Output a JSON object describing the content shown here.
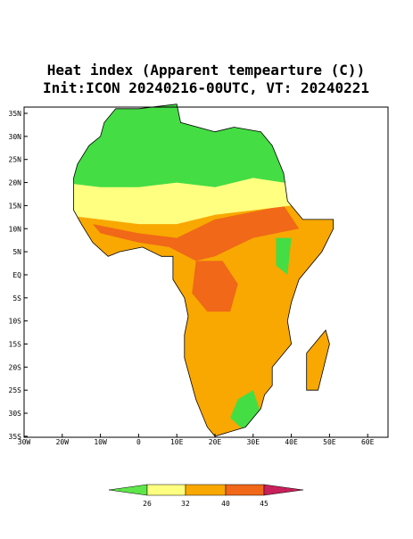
{
  "title": {
    "line1": "Heat index (Apparent tempearture (C))",
    "line2": "Init:ICON 20240216-00UTC, VT: 20240221"
  },
  "map": {
    "lat_labels": [
      "35N",
      "30N",
      "25N",
      "20N",
      "15N",
      "10N",
      "5N",
      "EQ",
      "5S",
      "10S",
      "15S",
      "20S",
      "25S",
      "30S",
      "35S"
    ],
    "lon_labels": [
      "30W",
      "20W",
      "10W",
      "0",
      "10E",
      "20E",
      "30E",
      "40E",
      "50E",
      "60E"
    ]
  },
  "colorbar": {
    "labels": [
      "26",
      "32",
      "40",
      "45"
    ]
  }
}
